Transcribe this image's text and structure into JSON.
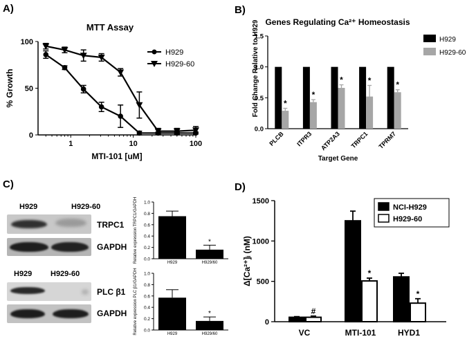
{
  "panels": {
    "a": {
      "label": "A)"
    },
    "b": {
      "label": "B)"
    },
    "c": {
      "label": "C)"
    },
    "d": {
      "label": "D)"
    }
  },
  "chart_data": [
    {
      "id": "A",
      "type": "line",
      "title": "MTT Assay",
      "xlabel": "MTI-101 [uM]",
      "ylabel": "% Growth",
      "x_scale": "log",
      "xlim": [
        0.3,
        100
      ],
      "ylim": [
        0,
        100
      ],
      "x_ticks": [
        "1",
        "10",
        "100"
      ],
      "y_ticks": [
        "0",
        "50",
        "100"
      ],
      "x": [
        0.4,
        0.8,
        1.6,
        3.1,
        6.25,
        12.5,
        25,
        50,
        100
      ],
      "series": [
        {
          "name": "H929",
          "marker": "circle",
          "values": [
            86,
            72,
            49,
            30,
            20,
            2,
            2,
            2,
            2
          ],
          "errors": [
            4,
            2,
            4,
            5,
            12,
            2,
            1,
            1,
            1
          ]
        },
        {
          "name": "H929-60",
          "marker": "triangle-down",
          "values": [
            95,
            91,
            85,
            83,
            67,
            32,
            4,
            4,
            5
          ],
          "errors": [
            3,
            3,
            6,
            4,
            4,
            14,
            3,
            3,
            4
          ]
        }
      ],
      "legend": "top-right"
    },
    {
      "id": "B",
      "type": "bar",
      "title": "Genes Regulating Ca²⁺ Homeostasis",
      "xlabel": "Target Gene",
      "ylabel": "Fold Change Relative to H929",
      "ylim": [
        0,
        1.5
      ],
      "y_ticks": [
        "0.0",
        "0.5",
        "1.0",
        "1.5"
      ],
      "categories": [
        "PLCB",
        "ITPR3",
        "ATP2A3",
        "TRPC1",
        "TPRM7"
      ],
      "series": [
        {
          "name": "H929",
          "color": "#000000",
          "values": [
            1,
            1,
            1,
            1,
            1
          ],
          "errors": [
            0,
            0,
            0,
            0,
            0
          ]
        },
        {
          "name": "H929-60",
          "color": "#a6a6a6",
          "values": [
            0.29,
            0.43,
            0.66,
            0.52,
            0.59
          ],
          "errors": [
            0.04,
            0.04,
            0.05,
            0.18,
            0.04
          ]
        }
      ],
      "annotations": [
        "*",
        "*",
        "*",
        "*",
        "*"
      ],
      "legend": "top-right"
    },
    {
      "id": "C-top",
      "type": "bar",
      "ylabel": "Relative expression TRPC1/GAPDH",
      "ylim": [
        0,
        1.0
      ],
      "y_ticks": [
        "0.0",
        "0.2",
        "0.4",
        "0.6",
        "0.8",
        "1.0"
      ],
      "categories": [
        "H929",
        "H929/60"
      ],
      "values": [
        0.75,
        0.16
      ],
      "errors": [
        0.09,
        0.08
      ],
      "annotations": [
        "",
        "*"
      ]
    },
    {
      "id": "C-bottom",
      "type": "bar",
      "ylabel": "Relative expression PLC β1/GAPDH",
      "ylim": [
        0,
        1.0
      ],
      "y_ticks": [
        "0.0",
        "0.2",
        "0.4",
        "0.6",
        "0.8",
        "1.0"
      ],
      "categories": [
        "H929",
        "H929/60"
      ],
      "values": [
        0.57,
        0.16
      ],
      "errors": [
        0.14,
        0.07
      ],
      "annotations": [
        "",
        "*"
      ]
    },
    {
      "id": "D",
      "type": "bar",
      "ylabel": "Δ[Ca²⁺]ᵢ (nM)",
      "ylim": [
        0,
        1500
      ],
      "y_ticks": [
        "0",
        "500",
        "1000",
        "1500"
      ],
      "categories": [
        "VC",
        "MTI-101",
        "HYD1"
      ],
      "series": [
        {
          "name": "NCI-H929",
          "color": "#000000",
          "values": [
            55,
            1250,
            555
          ],
          "errors": [
            8,
            120,
            45
          ]
        },
        {
          "name": "H929-60",
          "color": "#ffffff",
          "values": [
            55,
            505,
            230
          ],
          "errors": [
            15,
            35,
            55
          ]
        }
      ],
      "annotations": [
        [
          "",
          "#"
        ],
        [
          "",
          "*"
        ],
        [
          "",
          "*"
        ]
      ],
      "legend": "top-right"
    }
  ],
  "western_blots": {
    "top": {
      "lanes": [
        "H929",
        "H929-60"
      ],
      "rows": [
        "TRPC1",
        "GAPDH"
      ]
    },
    "bottom": {
      "lanes": [
        "H929",
        "H929-60"
      ],
      "rows": [
        "PLC β1",
        "GAPDH"
      ]
    }
  }
}
